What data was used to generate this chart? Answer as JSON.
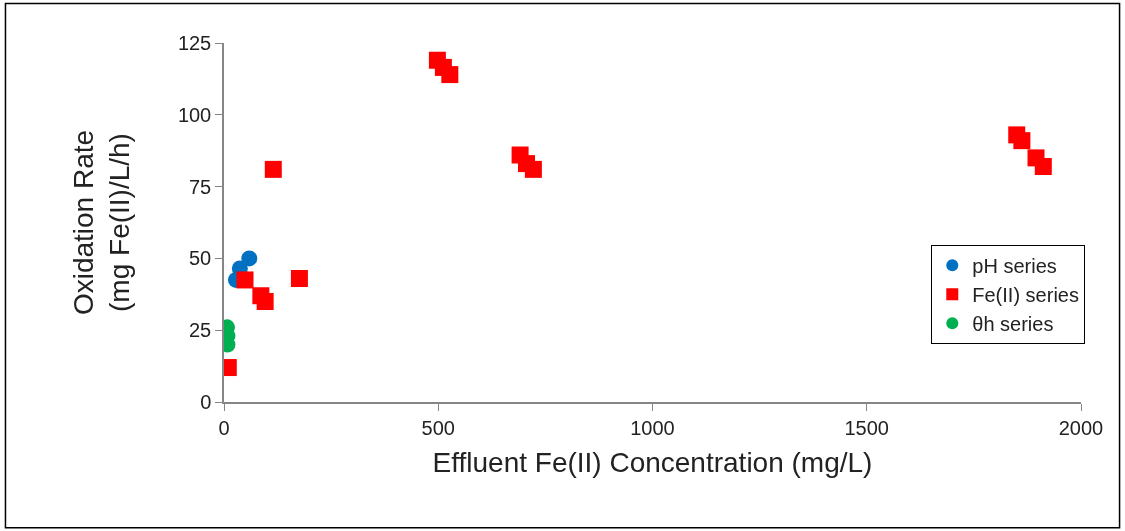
{
  "chart_data": {
    "type": "scatter",
    "xlabel": "Effluent Fe(II) Concentration (mg/L)",
    "ylabel": "Oxidation Rate\n(mg Fe(II)/L/h)",
    "xlim": [
      0,
      2000
    ],
    "xticks": [
      0,
      500,
      1000,
      1500,
      2000
    ],
    "ylim": [
      0,
      125
    ],
    "yticks": [
      0,
      25,
      50,
      75,
      100,
      125
    ],
    "legend": "right",
    "series": [
      {
        "name": "pH series",
        "color": "#0070c0",
        "marker": "circle",
        "x": [
          59,
          37,
          28
        ],
        "values": [
          50,
          46.5,
          42.5
        ]
      },
      {
        "name": "Fe(II) series",
        "color": "#ff0000",
        "marker": "square",
        "x": [
          10,
          49,
          86,
          96,
          176,
          115,
          498,
          512,
          527,
          691,
          706,
          722,
          1850,
          1862,
          1895,
          1912
        ],
        "values": [
          12,
          42.5,
          37,
          35,
          43,
          81,
          119,
          116.5,
          114,
          86,
          83,
          81,
          93,
          91,
          85,
          82
        ]
      },
      {
        "name": "θh series",
        "color": "#00b050",
        "marker": "circle",
        "x": [
          7,
          8,
          8
        ],
        "values": [
          26,
          23,
          20
        ]
      }
    ]
  }
}
